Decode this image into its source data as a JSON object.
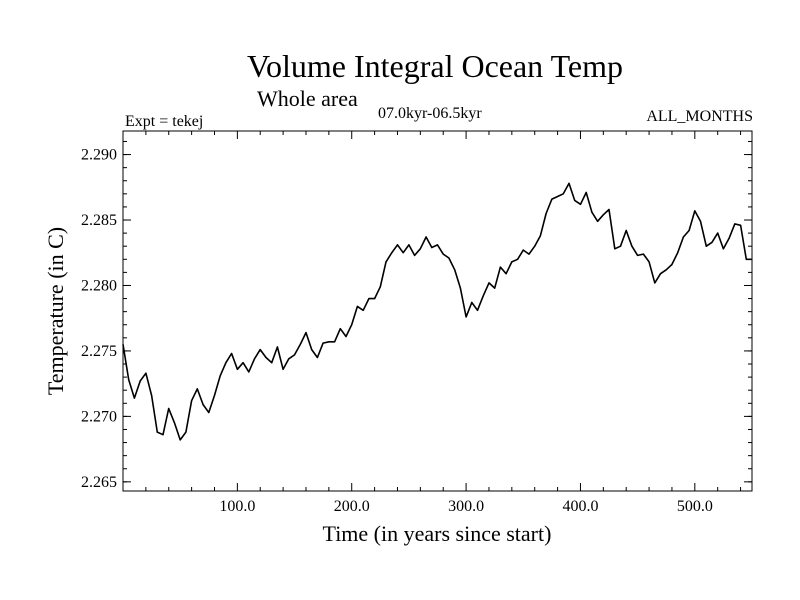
{
  "chart_data": {
    "type": "line",
    "title": "Volume Integral Ocean Temp",
    "subtitle": "Whole area",
    "period_label": "07.0kyr-06.5kyr",
    "experiment_label": "Expt = tekej",
    "months_label": "ALL_MONTHS",
    "xlabel": "Time (in years since start)",
    "ylabel": "Temperature (in C)",
    "xlim": [
      0,
      550
    ],
    "ylim": [
      2.2643,
      2.2918
    ],
    "x_ticks": [
      100,
      200,
      300,
      400,
      500
    ],
    "x_tick_labels": [
      "100.0",
      "200.0",
      "300.0",
      "400.0",
      "500.0"
    ],
    "y_ticks": [
      2.265,
      2.27,
      2.275,
      2.28,
      2.285,
      2.29
    ],
    "y_tick_labels": [
      "2.265",
      "2.270",
      "2.275",
      "2.280",
      "2.285",
      "2.290"
    ],
    "grid": false,
    "series": [
      {
        "name": "Volume Integral Ocean Temp",
        "x": [
          0,
          5,
          10,
          15,
          20,
          25,
          30,
          35,
          40,
          45,
          50,
          55,
          60,
          65,
          70,
          75,
          80,
          85,
          90,
          95,
          100,
          105,
          110,
          115,
          120,
          125,
          130,
          135,
          140,
          145,
          150,
          155,
          160,
          165,
          170,
          175,
          180,
          185,
          190,
          195,
          200,
          205,
          210,
          215,
          220,
          225,
          230,
          235,
          240,
          245,
          250,
          255,
          260,
          265,
          270,
          275,
          280,
          285,
          290,
          295,
          300,
          305,
          310,
          315,
          320,
          325,
          330,
          335,
          340,
          345,
          350,
          355,
          360,
          365,
          370,
          375,
          380,
          385,
          390,
          395,
          400,
          405,
          410,
          415,
          420,
          425,
          430,
          435,
          440,
          445,
          450,
          455,
          460,
          465,
          470,
          475,
          480,
          485,
          490,
          495,
          500,
          505,
          510,
          515,
          520,
          525,
          530,
          535,
          540,
          545,
          550
        ],
        "values": [
          2.2755,
          2.2728,
          2.2714,
          2.2727,
          2.2733,
          2.2716,
          2.2688,
          2.2686,
          2.2706,
          2.2695,
          2.2682,
          2.2688,
          2.2712,
          2.2721,
          2.2709,
          2.2703,
          2.2716,
          2.2731,
          2.2741,
          2.2748,
          2.2736,
          2.2741,
          2.2734,
          2.2744,
          2.2751,
          2.2745,
          2.2741,
          2.2753,
          2.2736,
          2.2744,
          2.2747,
          2.2755,
          2.2764,
          2.2751,
          2.2745,
          2.2756,
          2.2757,
          2.2757,
          2.2767,
          2.2761,
          2.277,
          2.2784,
          2.2781,
          2.279,
          2.279,
          2.2799,
          2.2818,
          2.2825,
          2.2831,
          2.2825,
          2.2831,
          2.2823,
          2.2828,
          2.2837,
          2.2829,
          2.2831,
          2.2824,
          2.2821,
          2.2812,
          2.2798,
          2.2776,
          2.2787,
          2.2781,
          2.2792,
          2.2802,
          2.2798,
          2.2814,
          2.2809,
          2.2818,
          2.282,
          2.2827,
          2.2824,
          2.283,
          2.2838,
          2.2855,
          2.2866,
          2.2868,
          2.287,
          2.2878,
          2.2865,
          2.2862,
          2.2871,
          2.2856,
          2.2849,
          2.2854,
          2.2858,
          2.2828,
          2.283,
          2.2842,
          2.283,
          2.2823,
          2.2824,
          2.2818,
          2.2802,
          2.2809,
          2.2812,
          2.2816,
          2.2825,
          2.2837,
          2.2842,
          2.2857,
          2.2849,
          2.283,
          2.2833,
          2.284,
          2.2828,
          2.2836,
          2.2847,
          2.2846,
          2.282,
          2.282
        ]
      }
    ]
  }
}
